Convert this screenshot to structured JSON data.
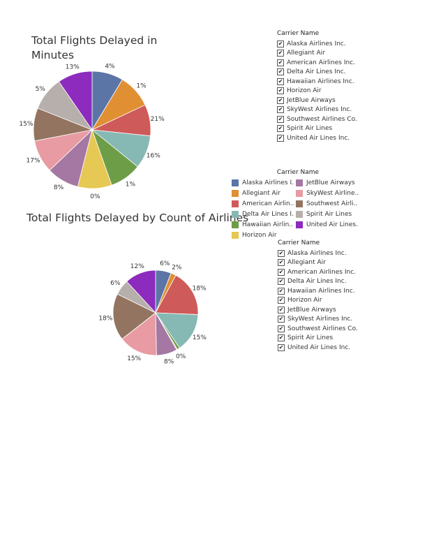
{
  "carriers": [
    {
      "name": "Alaska Airlines Inc.",
      "color": "#5b76a6"
    },
    {
      "name": "Allegiant Air",
      "color": "#e08f33"
    },
    {
      "name": "American Airlines Inc.",
      "color": "#cf5a5a"
    },
    {
      "name": "Delta Air Lines Inc.",
      "color": "#87b9b4"
    },
    {
      "name": "Hawaiian Airlines Inc.",
      "color": "#6e9d48"
    },
    {
      "name": "Horizon Air",
      "color": "#e6c854"
    },
    {
      "name": "JetBlue Airways",
      "color": "#a478a3"
    },
    {
      "name": "SkyWest Airlines Inc.",
      "color": "#e89ba2"
    },
    {
      "name": "Southwest Airlines Co.",
      "color": "#937460"
    },
    {
      "name": "Spirit Air Lines",
      "color": "#b7afab"
    },
    {
      "name": "United Air Lines Inc.",
      "color": "#8c2bbd"
    }
  ],
  "filter1": {
    "title": "Carrier Name",
    "items": [
      {
        "label": "Alaska Airlines Inc.",
        "checked": "✔"
      },
      {
        "label": "Allegiant Air",
        "checked": "✔"
      },
      {
        "label": "American Airlines Inc.",
        "checked": "✔"
      },
      {
        "label": "Delta Air Lines Inc.",
        "checked": "✔"
      },
      {
        "label": "Hawaiian Airlines Inc.",
        "checked": "✔"
      },
      {
        "label": "Horizon Air",
        "checked": "✔"
      },
      {
        "label": "JetBlue Airways",
        "checked": "✔"
      },
      {
        "label": "SkyWest Airlines Inc.",
        "checked": "✔"
      },
      {
        "label": "Southwest Airlines Co.",
        "checked": "✔"
      },
      {
        "label": "Spirit Air Lines",
        "checked": "✔"
      },
      {
        "label": "United Air Lines Inc.",
        "checked": "✔"
      }
    ]
  },
  "filter2": {
    "title": "Carrier Name",
    "items": [
      {
        "label": "Alaska Airlines Inc.",
        "checked": "✔"
      },
      {
        "label": "Allegiant Air",
        "checked": "✔"
      },
      {
        "label": "American Airlines Inc.",
        "checked": "✔"
      },
      {
        "label": "Delta Air Lines Inc.",
        "checked": "✔"
      },
      {
        "label": "Hawaiian Airlines Inc.",
        "checked": "✔"
      },
      {
        "label": "Horizon Air",
        "checked": "✔"
      },
      {
        "label": "JetBlue Airways",
        "checked": "✔"
      },
      {
        "label": "SkyWest Airlines Inc.",
        "checked": "✔"
      },
      {
        "label": "Southwest Airlines Co.",
        "checked": "✔"
      },
      {
        "label": "Spirit Air Lines",
        "checked": "✔"
      },
      {
        "label": "United Air Lines Inc.",
        "checked": "✔"
      }
    ]
  },
  "legend": {
    "title": "Carrier Name",
    "items": [
      {
        "label": "Alaska Airlines I..",
        "color": "#5b76a6"
      },
      {
        "label": "JetBlue Airways",
        "color": "#a478a3"
      },
      {
        "label": "Allegiant Air",
        "color": "#e08f33"
      },
      {
        "label": "SkyWest Airline..",
        "color": "#e89ba2"
      },
      {
        "label": "American Airlin..",
        "color": "#cf5a5a"
      },
      {
        "label": "Southwest Airli..",
        "color": "#937460"
      },
      {
        "label": "Delta Air Lines I..",
        "color": "#87b9b4"
      },
      {
        "label": "Spirit Air Lines",
        "color": "#b7afab"
      },
      {
        "label": "Hawaiian Airlin..",
        "color": "#6e9d48"
      },
      {
        "label": "United Air Lines..",
        "color": "#8c2bbd"
      },
      {
        "label": "Horizon Air",
        "color": "#e6c854"
      }
    ]
  },
  "chart_data": [
    {
      "type": "pie",
      "title": "Total Flights Delayed in Minutes",
      "categories": [
        "Alaska Airlines Inc.",
        "Allegiant Air",
        "American Airlines Inc.",
        "Delta Air Lines Inc.",
        "Hawaiian Airlines Inc.",
        "Horizon Air",
        "JetBlue Airways",
        "SkyWest Airlines Inc.",
        "Southwest Airlines Co.",
        "Spirit Air Lines",
        "United Air Lines Inc."
      ],
      "slice_weights": [
        8.1,
        8.8,
        8.1,
        8.6,
        8.2,
        8.8,
        8.4,
        8.5,
        8.5,
        8.8,
        9.0
      ],
      "labels": [
        "4%",
        "1%",
        "21%",
        "16%",
        "1%",
        "0%",
        "8%",
        "17%",
        "15%",
        "5%",
        "13%"
      ]
    },
    {
      "type": "pie",
      "title": "Total Flights Delayed by Count of Airlines",
      "categories": [
        "Alaska Airlines Inc.",
        "Allegiant Air",
        "American Airlines Inc.",
        "Delta Air Lines Inc.",
        "Hawaiian Airlines Inc.",
        "Horizon Air",
        "JetBlue Airways",
        "SkyWest Airlines Inc.",
        "Southwest Airlines Co.",
        "Spirit Air Lines",
        "United Air Lines Inc."
      ],
      "values": [
        6,
        2,
        18,
        15,
        1,
        0.3,
        8,
        15,
        18,
        6,
        12
      ],
      "labels": [
        "6%",
        "2%",
        "18%",
        "15%",
        "",
        "0%",
        "8%",
        "15%",
        "18%",
        "6%",
        "12%"
      ]
    }
  ]
}
